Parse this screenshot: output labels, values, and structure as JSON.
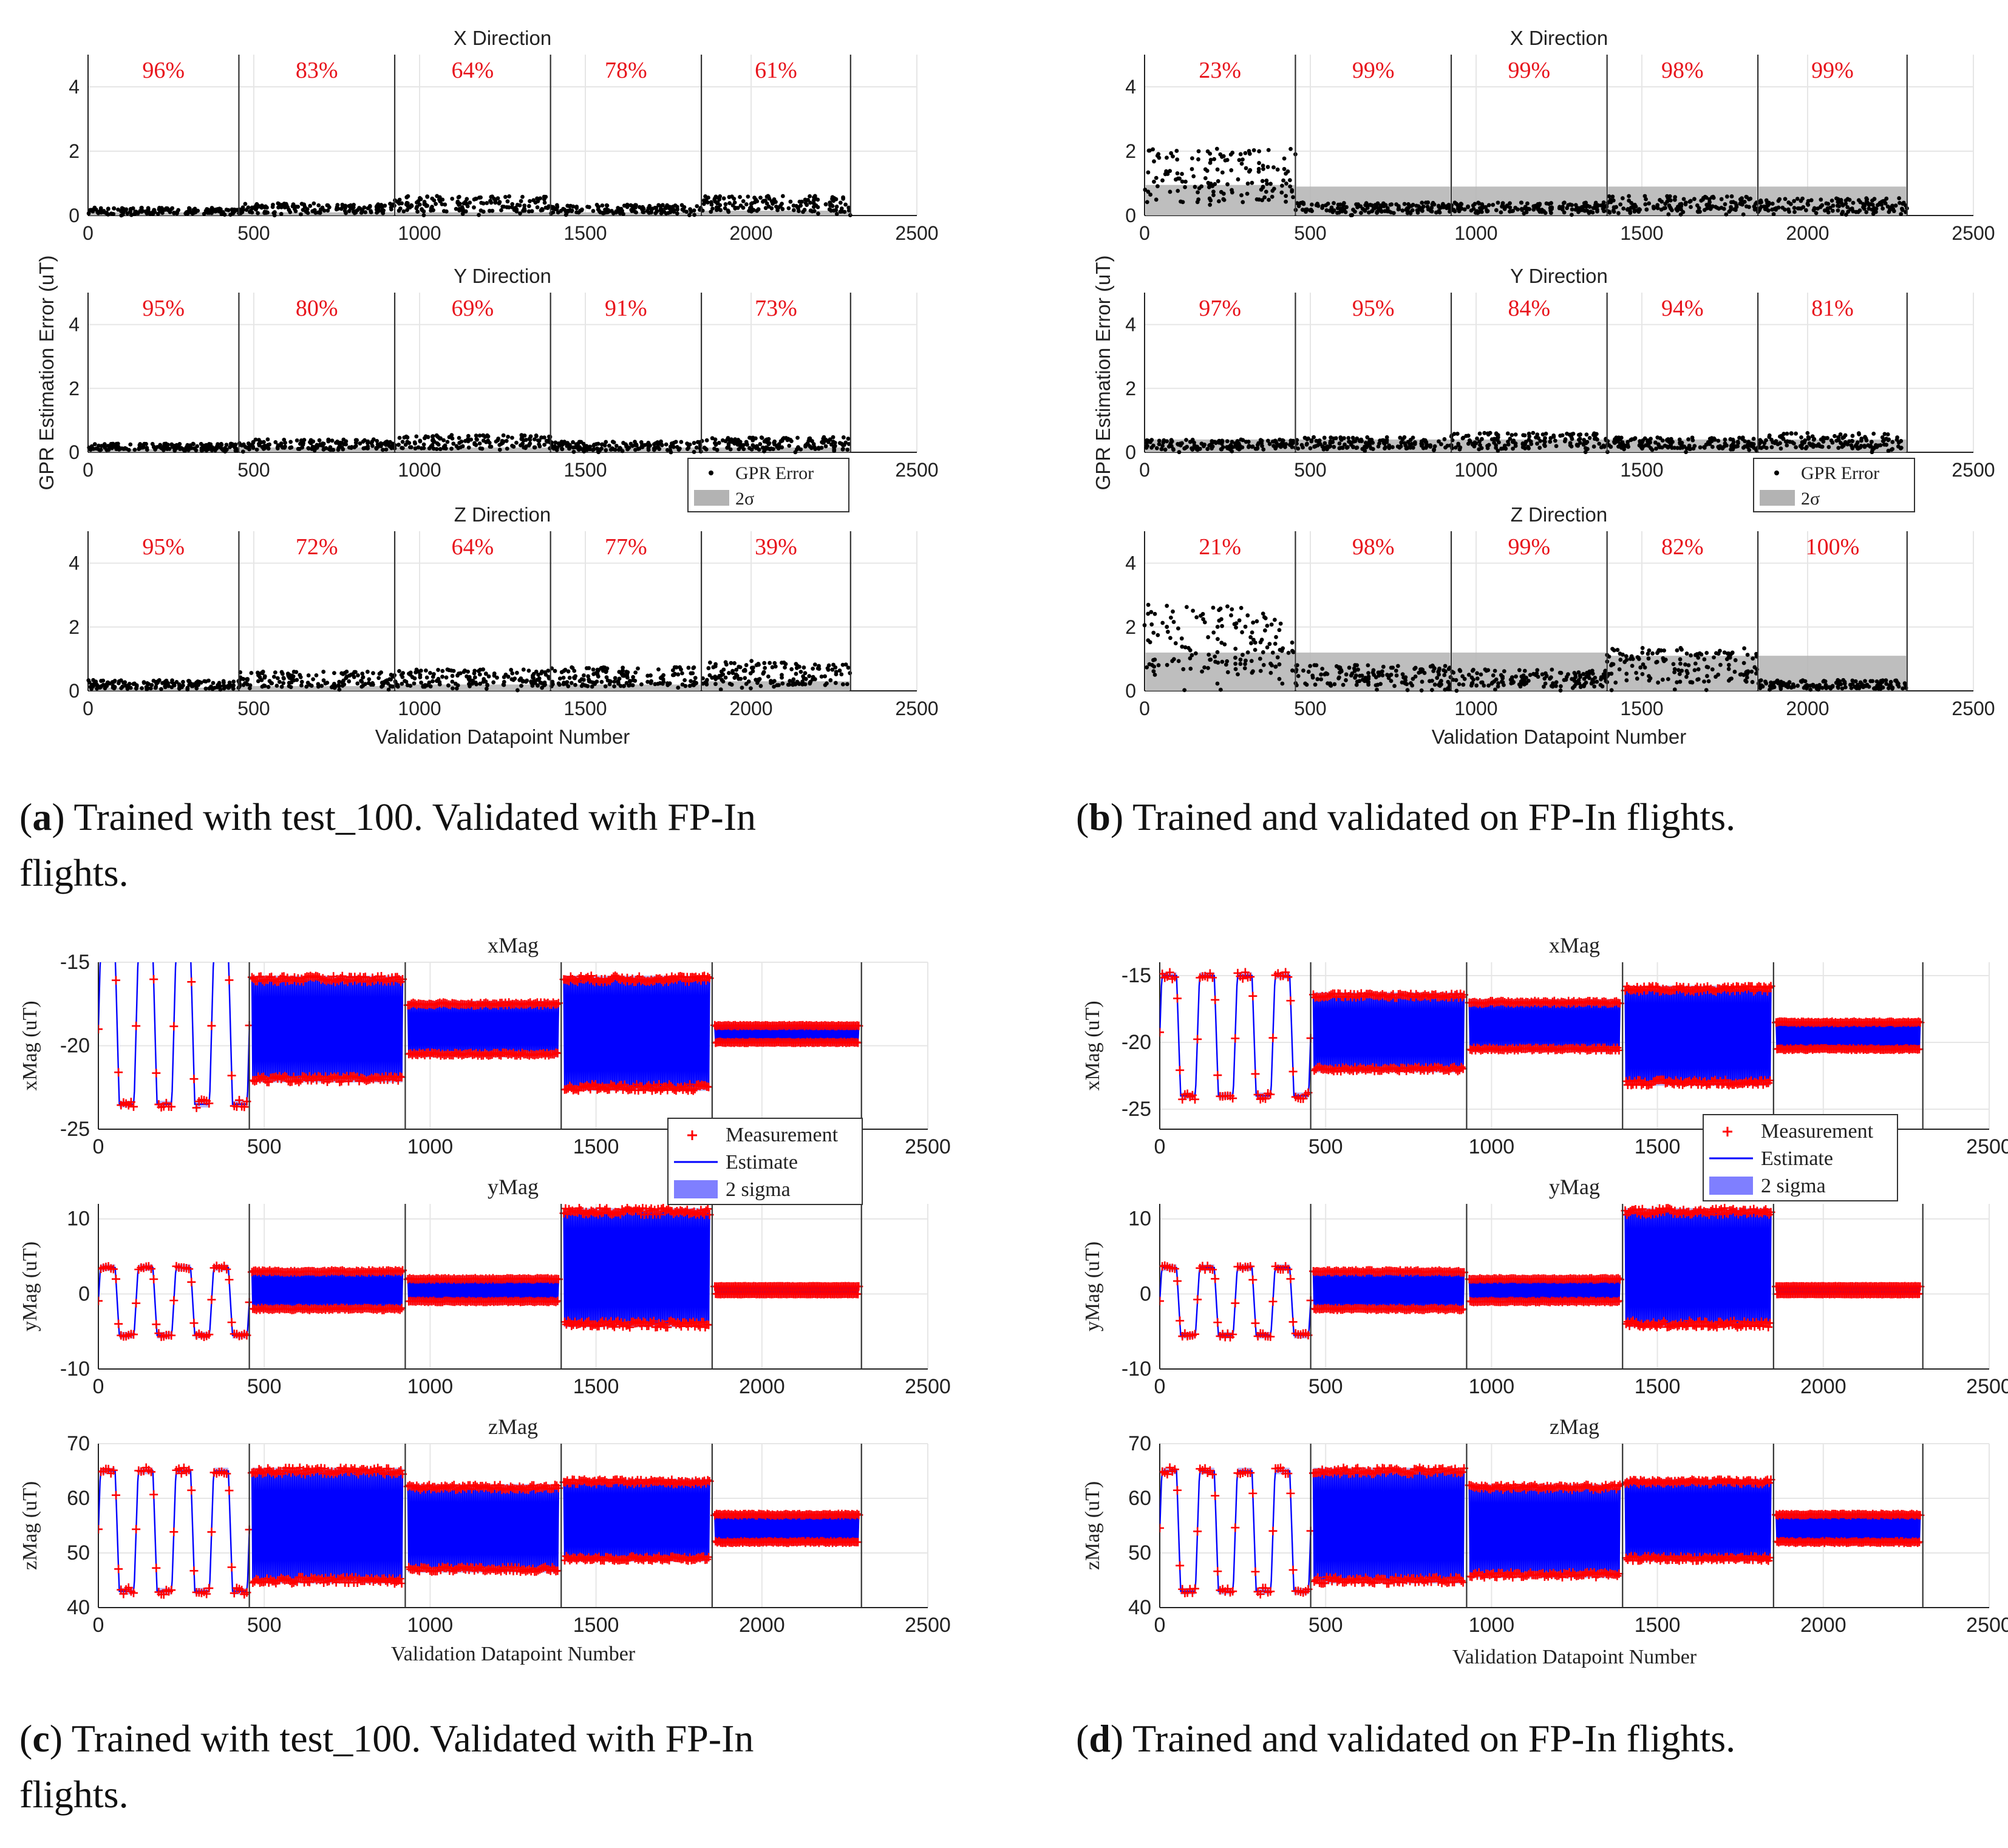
{
  "colors": {
    "pct": "#e8141c",
    "error_dot": "#000000",
    "two_sigma_gray": "#b3b3b3",
    "measurement": "#ff0000",
    "estimate": "#0000ff",
    "two_sigma_blue": "#7f7fff"
  },
  "captions": {
    "a": {
      "letter": "a",
      "text": ") Trained with test_100. Validated with FP-In",
      "text2": "flights."
    },
    "b": {
      "letter": "b",
      "text": ") Trained and validated on FP-In flights."
    },
    "c": {
      "letter": "c",
      "text": ") Trained with test_100. Validated with FP-In",
      "text2": "flights."
    },
    "d": {
      "letter": "d",
      "text": ") Trained and validated on FP-In flights."
    }
  },
  "chart_data": [
    {
      "id": "a",
      "type": "scatter",
      "ylabel": "GPR Estimation Error (uT)",
      "xlabel": "Validation Datapoint Number",
      "xlim": [
        0,
        2500
      ],
      "ylim": [
        0,
        5
      ],
      "xticks": [
        "0",
        "500",
        "1000",
        "1500",
        "2000",
        "2500"
      ],
      "yticks": [
        "0",
        "2",
        "4"
      ],
      "segment_boundaries": [
        455,
        925,
        1395,
        1850,
        2300
      ],
      "legend": {
        "entries": [
          "GPR Error",
          "2σ"
        ],
        "location": "lower-right of Y panel"
      },
      "panels": [
        {
          "title": "X Direction",
          "percentages": [
            "96%",
            "83%",
            "64%",
            "78%",
            "61%"
          ],
          "error_levels": [
            0.18,
            0.28,
            0.45,
            0.25,
            0.45
          ],
          "sigma_levels": [
            0.1,
            0.1,
            0.1,
            0.1,
            0.15
          ]
        },
        {
          "title": "Y Direction",
          "percentages": [
            "95%",
            "80%",
            "69%",
            "91%",
            "73%"
          ],
          "error_levels": [
            0.2,
            0.3,
            0.4,
            0.25,
            0.35
          ],
          "sigma_levels": [
            0.1,
            0.15,
            0.15,
            0.15,
            0.15
          ]
        },
        {
          "title": "Z Direction",
          "percentages": [
            "95%",
            "72%",
            "64%",
            "77%",
            "39%"
          ],
          "error_levels": [
            0.25,
            0.45,
            0.5,
            0.55,
            0.7
          ],
          "sigma_levels": [
            0.1,
            0.15,
            0.2,
            0.2,
            0.3
          ]
        }
      ]
    },
    {
      "id": "b",
      "type": "scatter",
      "ylabel": "GPR Estimation Error (uT)",
      "xlabel": "Validation Datapoint Number",
      "xlim": [
        0,
        2500
      ],
      "ylim": [
        0,
        5
      ],
      "xticks": [
        "0",
        "500",
        "1000",
        "1500",
        "2000",
        "2500"
      ],
      "yticks": [
        "0",
        "2",
        "4"
      ],
      "segment_boundaries": [
        455,
        925,
        1395,
        1850,
        2300
      ],
      "legend": {
        "entries": [
          "GPR Error",
          "2σ"
        ],
        "location": "lower-right of Y panel"
      },
      "panels": [
        {
          "title": "X Direction",
          "percentages": [
            "23%",
            "99%",
            "99%",
            "98%",
            "99%"
          ],
          "error_levels": [
            1.55,
            0.3,
            0.3,
            0.45,
            0.4
          ],
          "sigma_levels": [
            0.95,
            0.9,
            0.9,
            0.9,
            0.9
          ]
        },
        {
          "title": "Y Direction",
          "percentages": [
            "97%",
            "95%",
            "84%",
            "94%",
            "81%"
          ],
          "error_levels": [
            0.3,
            0.35,
            0.45,
            0.35,
            0.45
          ],
          "sigma_levels": [
            0.4,
            0.4,
            0.4,
            0.4,
            0.4
          ]
        },
        {
          "title": "Z Direction",
          "percentages": [
            "21%",
            "98%",
            "99%",
            "82%",
            "100%"
          ],
          "error_levels": [
            2.0,
            0.6,
            0.5,
            1.0,
            0.25
          ],
          "sigma_levels": [
            1.2,
            1.2,
            1.2,
            1.1,
            1.1
          ]
        }
      ]
    },
    {
      "id": "c",
      "type": "line",
      "xlabel": "Validation Datapoint Number",
      "xlim": [
        0,
        2500
      ],
      "xticks": [
        "0",
        "500",
        "1000",
        "1500",
        "2000",
        "2500"
      ],
      "segment_boundaries": [
        455,
        925,
        1395,
        1850,
        2300
      ],
      "legend": {
        "entries": [
          "Measurement",
          "Estimate",
          "2 sigma"
        ],
        "location": "below xMag panel, right"
      },
      "panels": [
        {
          "title": "xMag",
          "ylabel": "xMag (uT)",
          "ylim": [
            -25,
            -15
          ],
          "yticks": [
            "-15",
            "-20",
            "-25"
          ],
          "ytick_values": [
            -15,
            -20,
            -25
          ],
          "segments": [
            {
              "kind": "wave",
              "center": -19,
              "amp": 4.5,
              "cycles": 4
            },
            {
              "kind": "band",
              "lo": -22,
              "hi": -16
            },
            {
              "kind": "band",
              "lo": -20.5,
              "hi": -17.5
            },
            {
              "kind": "band",
              "lo": -22.5,
              "hi": -16
            },
            {
              "kind": "band",
              "lo": -19.8,
              "hi": -18.8
            }
          ]
        },
        {
          "title": "yMag",
          "ylabel": "yMag (uT)",
          "ylim": [
            -10,
            12
          ],
          "yticks": [
            "10",
            "0",
            "-10"
          ],
          "ytick_values": [
            10,
            0,
            -10
          ],
          "segments": [
            {
              "kind": "wave",
              "center": -1,
              "amp": 4.5,
              "cycles": 4
            },
            {
              "kind": "band",
              "lo": -2,
              "hi": 3
            },
            {
              "kind": "band",
              "lo": -1,
              "hi": 2
            },
            {
              "kind": "band",
              "lo": -4,
              "hi": 11
            },
            {
              "kind": "band",
              "lo": 0,
              "hi": 1
            }
          ]
        },
        {
          "title": "zMag",
          "ylabel": "zMag (uT)",
          "ylim": [
            40,
            70
          ],
          "yticks": [
            "70",
            "60",
            "50",
            "40"
          ],
          "ytick_values": [
            70,
            60,
            50,
            40
          ],
          "segments": [
            {
              "kind": "wave",
              "center": 54,
              "amp": 11,
              "cycles": 4
            },
            {
              "kind": "band",
              "lo": 45,
              "hi": 65
            },
            {
              "kind": "band",
              "lo": 47,
              "hi": 62
            },
            {
              "kind": "band",
              "lo": 49,
              "hi": 63
            },
            {
              "kind": "band",
              "lo": 52,
              "hi": 57
            }
          ]
        }
      ]
    },
    {
      "id": "d",
      "type": "line",
      "xlabel": "Validation Datapoint Number",
      "xlim": [
        0,
        2500
      ],
      "xticks": [
        "0",
        "500",
        "1000",
        "1500",
        "2000",
        "2500"
      ],
      "segment_boundaries": [
        455,
        925,
        1395,
        1850,
        2300
      ],
      "legend": {
        "entries": [
          "Measurement",
          "Estimate",
          "2 sigma"
        ],
        "location": "below xMag panel, right"
      },
      "panels": [
        {
          "title": "xMag",
          "ylabel": "xMag (uT)",
          "ylim": [
            -26.5,
            -14
          ],
          "yticks": [
            "-15",
            "-20",
            "-25"
          ],
          "ytick_values": [
            -15,
            -20,
            -25
          ],
          "segments": [
            {
              "kind": "wave",
              "center": -19.5,
              "amp": 4.5,
              "cycles": 4
            },
            {
              "kind": "band",
              "lo": -22,
              "hi": -16.5
            },
            {
              "kind": "band",
              "lo": -20.5,
              "hi": -17
            },
            {
              "kind": "band",
              "lo": -23,
              "hi": -16
            },
            {
              "kind": "band",
              "lo": -20.5,
              "hi": -18.5
            }
          ]
        },
        {
          "title": "yMag",
          "ylabel": "yMag (uT)",
          "ylim": [
            -10,
            12
          ],
          "yticks": [
            "10",
            "0",
            "-10"
          ],
          "ytick_values": [
            10,
            0,
            -10
          ],
          "segments": [
            {
              "kind": "wave",
              "center": -1,
              "amp": 4.5,
              "cycles": 4
            },
            {
              "kind": "band",
              "lo": -2,
              "hi": 3
            },
            {
              "kind": "band",
              "lo": -1,
              "hi": 2
            },
            {
              "kind": "band",
              "lo": -4,
              "hi": 11
            },
            {
              "kind": "band",
              "lo": 0,
              "hi": 1
            }
          ]
        },
        {
          "title": "zMag",
          "ylabel": "zMag (uT)",
          "ylim": [
            40,
            70
          ],
          "yticks": [
            "70",
            "60",
            "50",
            "40"
          ],
          "ytick_values": [
            70,
            60,
            50,
            40
          ],
          "segments": [
            {
              "kind": "wave",
              "center": 54,
              "amp": 11,
              "cycles": 4
            },
            {
              "kind": "band",
              "lo": 45,
              "hi": 65
            },
            {
              "kind": "band",
              "lo": 46,
              "hi": 62
            },
            {
              "kind": "band",
              "lo": 49,
              "hi": 63
            },
            {
              "kind": "band",
              "lo": 52,
              "hi": 57
            }
          ]
        }
      ]
    }
  ]
}
